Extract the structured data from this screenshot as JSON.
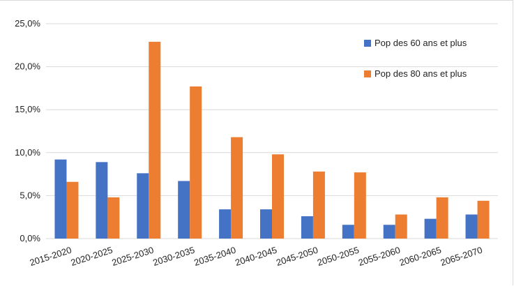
{
  "chart_data": {
    "type": "bar",
    "title": "",
    "xlabel": "",
    "ylabel": "",
    "categories": [
      "2015-2020",
      "2020-2025",
      "2025-2030",
      "2030-2035",
      "2035-2040",
      "2040-2045",
      "2045-2050",
      "2050-2055",
      "2055-2060",
      "2060-2065",
      "2065-2070"
    ],
    "series": [
      {
        "name": "Pop des 60 ans et plus",
        "color": "#4472C4",
        "values": [
          9.2,
          8.9,
          7.6,
          6.7,
          3.4,
          3.4,
          2.6,
          1.6,
          1.6,
          2.3,
          2.8
        ]
      },
      {
        "name": "Pop des 80 ans et plus",
        "color": "#ED7D31",
        "values": [
          6.6,
          4.8,
          22.9,
          17.7,
          11.8,
          9.8,
          7.8,
          7.7,
          2.8,
          4.8,
          4.4
        ]
      }
    ],
    "ylim": [
      0,
      25
    ],
    "yticks": [
      0,
      5,
      10,
      15,
      20,
      25
    ],
    "ytick_labels": [
      "0,0%",
      "5,0%",
      "10,0%",
      "15,0%",
      "20,0%",
      "25,0%"
    ],
    "grid": true,
    "legend_position": "top-right"
  }
}
